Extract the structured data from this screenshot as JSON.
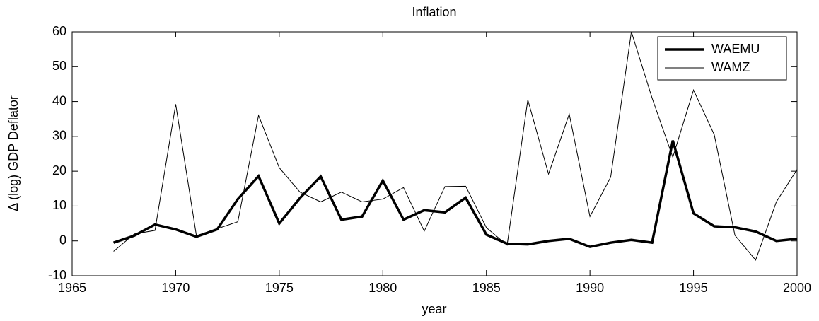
{
  "chart_data": {
    "type": "line",
    "title": "Inflation",
    "x_label": "year",
    "y_label": "Δ (log) GDP Deflator",
    "x": [
      1967,
      1968,
      1969,
      1970,
      1971,
      1972,
      1973,
      1974,
      1975,
      1976,
      1977,
      1978,
      1979,
      1980,
      1981,
      1982,
      1983,
      1984,
      1985,
      1986,
      1987,
      1988,
      1989,
      1990,
      1991,
      1992,
      1993,
      1994,
      1995,
      1996,
      1997,
      1998,
      1999,
      2000
    ],
    "series": [
      {
        "name": "WAEMU",
        "color": "#000000",
        "linewidth": 3.5,
        "values": [
          -0.5,
          1.5,
          4.7,
          3.3,
          1.2,
          3.3,
          12,
          18.6,
          5,
          12.3,
          18.5,
          6.1,
          7,
          17.3,
          6.1,
          8.8,
          8.2,
          12.4,
          1.8,
          -0.8,
          -1,
          0,
          0.6,
          -1.7,
          -0.5,
          0.3,
          -0.5,
          28.8,
          7.9,
          4.2,
          3.9,
          2.7,
          0,
          0.6
        ]
      },
      {
        "name": "WAMZ",
        "color": "#000000",
        "linewidth": 1,
        "values": [
          -3,
          2,
          3,
          39.2,
          1.5,
          3.5,
          5.5,
          36,
          21,
          14,
          11.2,
          14,
          11.2,
          12,
          15.3,
          2.8,
          15.6,
          15.7,
          3.8,
          -1.2,
          40.5,
          19.2,
          36.4,
          7,
          18.3,
          60,
          41,
          24,
          43.3,
          30.5,
          1.6,
          -5.5,
          11.2,
          20.5
        ]
      }
    ],
    "xlim": [
      1965,
      2000
    ],
    "xticks": [
      1965,
      1970,
      1975,
      1980,
      1985,
      1990,
      1995,
      2000
    ],
    "ylim": [
      -10,
      60
    ],
    "yticks": [
      -10,
      0,
      10,
      20,
      30,
      40,
      50,
      60
    ],
    "grid": false,
    "legend_position": "upper-right"
  }
}
